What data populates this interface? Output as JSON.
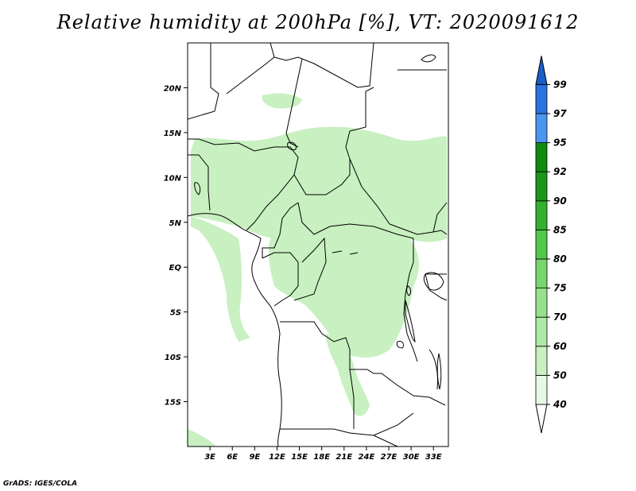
{
  "title": "Relative humidity at 200hPa [%], VT: 2020091612",
  "footer": "GrADS: IGES/COLA",
  "map": {
    "lon_range": [
      0,
      35
    ],
    "lat_range": [
      -20,
      25
    ],
    "lat_ticks": [
      {
        "value": 20,
        "label": "20N"
      },
      {
        "value": 15,
        "label": "15N"
      },
      {
        "value": 10,
        "label": "10N"
      },
      {
        "value": 5,
        "label": "5N"
      },
      {
        "value": 0,
        "label": "EQ"
      },
      {
        "value": -5,
        "label": "5S"
      },
      {
        "value": -10,
        "label": "10S"
      },
      {
        "value": -15,
        "label": "15S"
      }
    ],
    "lon_ticks": [
      {
        "value": 3,
        "label": "3E"
      },
      {
        "value": 6,
        "label": "6E"
      },
      {
        "value": 9,
        "label": "9E"
      },
      {
        "value": 12,
        "label": "12E"
      },
      {
        "value": 15,
        "label": "15E"
      },
      {
        "value": 18,
        "label": "18E"
      },
      {
        "value": 21,
        "label": "21E"
      },
      {
        "value": 24,
        "label": "24E"
      },
      {
        "value": 27,
        "label": "27E"
      },
      {
        "value": 30,
        "label": "30E"
      },
      {
        "value": 33,
        "label": "33E"
      }
    ],
    "humidity_fill_color": "#c8f0c0",
    "coastline_color": "#000000"
  },
  "colorbar": {
    "levels": [
      "40",
      "50",
      "60",
      "70",
      "75",
      "80",
      "85",
      "90",
      "92",
      "95",
      "97",
      "99"
    ],
    "colors": [
      "#ffffff",
      "#e6f9e6",
      "#c8f0c0",
      "#aee9a6",
      "#96e18c",
      "#78d66e",
      "#52c94a",
      "#33b02e",
      "#1b9619",
      "#0f8a0d",
      "#4a96ee",
      "#2a72de",
      "#1a5fc8"
    ]
  }
}
